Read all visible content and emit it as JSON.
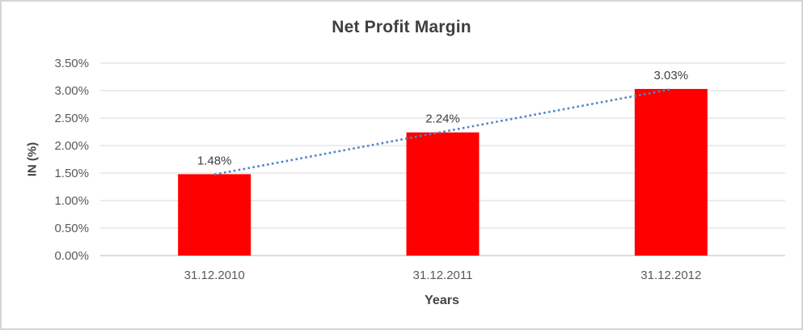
{
  "chart_data": {
    "type": "bar",
    "title": "Net Profit Margin",
    "xlabel": "Years",
    "ylabel": "IN (%)",
    "categories": [
      "31.12.2010",
      "31.12.2011",
      "31.12.2012"
    ],
    "values": [
      1.48,
      2.24,
      3.03
    ],
    "data_labels": [
      "1.48%",
      "2.24%",
      "3.03%"
    ],
    "ylim": [
      0,
      3.5
    ],
    "yticks": [
      {
        "value": 0.0,
        "label": "0.00%"
      },
      {
        "value": 0.5,
        "label": "0.50%"
      },
      {
        "value": 1.0,
        "label": "1.00%"
      },
      {
        "value": 1.5,
        "label": "1.50%"
      },
      {
        "value": 2.0,
        "label": "2.00%"
      },
      {
        "value": 2.5,
        "label": "2.50%"
      },
      {
        "value": 3.0,
        "label": "3.00%"
      },
      {
        "value": 3.5,
        "label": "3.50%"
      }
    ],
    "grid": true,
    "legend": "none",
    "trendline": {
      "type": "linear",
      "style": "dotted"
    },
    "colors": {
      "bar": "#ff0000",
      "trendline": "#4e86c8",
      "gridline": "#d9d9d9",
      "axis_line": "#c6c6c6",
      "title_text": "#3f3f3f",
      "tick_text": "#595959",
      "border": "#d5d5d5",
      "background": "#ffffff"
    }
  }
}
